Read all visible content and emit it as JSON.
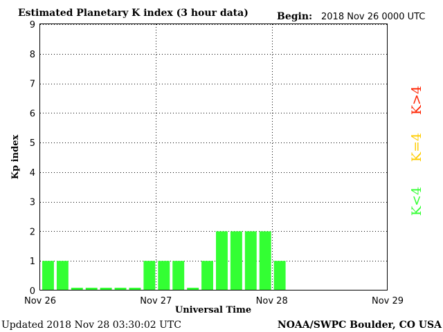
{
  "header": {
    "title": "Estimated Planetary K index (3 hour data)",
    "begin_label": "Begin:",
    "begin_value": "2018 Nov 26 0000 UTC"
  },
  "footer": {
    "updated": "Updated 2018 Nov 28 03:30:02 UTC",
    "source": "NOAA/SWPC Boulder, CO USA"
  },
  "legend": [
    {
      "label": "K<4",
      "color": "#33ff33"
    },
    {
      "label": "K=4",
      "color": "#ffcc00"
    },
    {
      "label": "K>4",
      "color": "#ff2200"
    }
  ],
  "chart_data": {
    "type": "bar",
    "title": "Estimated Planetary K index (3 hour data)",
    "xlabel": "Universal Time",
    "ylabel": "Kp index",
    "ylim": [
      0,
      9
    ],
    "yticks": [
      "0",
      "1",
      "2",
      "3",
      "4",
      "5",
      "6",
      "7",
      "8",
      "9"
    ],
    "xticks": [
      "Nov 26",
      "Nov 27",
      "Nov 28",
      "Nov 29"
    ],
    "grid": true,
    "bar_color": "#33ff33",
    "series": [
      {
        "values": [
          1,
          1,
          0,
          0,
          0,
          0,
          0,
          1,
          1,
          1,
          0,
          1,
          2,
          2,
          2,
          2,
          1
        ]
      }
    ]
  }
}
